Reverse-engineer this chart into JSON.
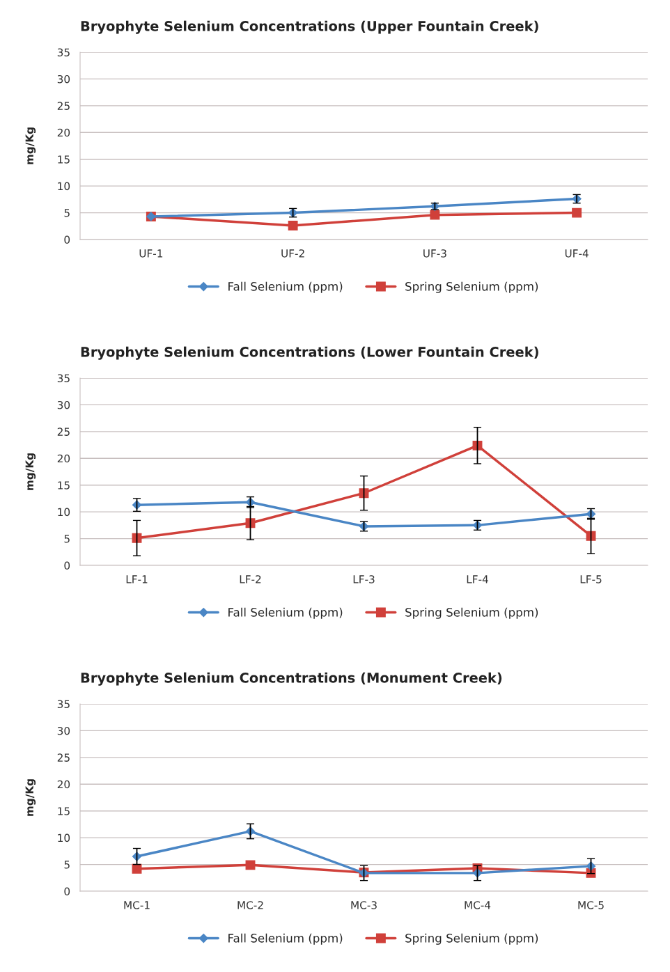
{
  "chart_data": [
    {
      "type": "line",
      "title": "Bryophyte Selenium Concentrations (Upper Fountain Creek)",
      "ylabel": "mg/Kg",
      "categories": [
        "UF-1",
        "UF-2",
        "UF-3",
        "UF-4"
      ],
      "series": [
        {
          "name": "Fall Selenium (ppm)",
          "color": "#4a86c5",
          "marker": "diamond",
          "values": [
            4.3,
            5.0,
            6.2,
            7.6
          ],
          "errors": [
            null,
            0.8,
            0.6,
            0.8
          ]
        },
        {
          "name": "Spring Selenium (ppm)",
          "color": "#d0403a",
          "marker": "square",
          "values": [
            4.3,
            2.6,
            4.6,
            5.0
          ]
        }
      ],
      "ylim": [
        0,
        35
      ],
      "yticks": [
        0,
        5,
        10,
        15,
        20,
        25,
        30,
        35
      ],
      "grid": "y",
      "legend": "bottom"
    },
    {
      "type": "line",
      "title": "Bryophyte Selenium Concentrations (Lower Fountain Creek)",
      "ylabel": "mg/Kg",
      "categories": [
        "LF-1",
        "LF-2",
        "LF-3",
        "LF-4",
        "LF-5"
      ],
      "series": [
        {
          "name": "Fall Selenium (ppm)",
          "color": "#4a86c5",
          "marker": "diamond",
          "values": [
            11.3,
            11.8,
            7.3,
            7.5,
            9.6
          ],
          "errors": [
            1.2,
            1.0,
            0.9,
            0.9,
            1.0
          ]
        },
        {
          "name": "Spring Selenium (ppm)",
          "color": "#d0403a",
          "marker": "square",
          "values": [
            5.1,
            7.9,
            13.5,
            22.4,
            5.5
          ],
          "errors": [
            3.3,
            3.1,
            3.2,
            3.4,
            3.3
          ]
        }
      ],
      "ylim": [
        0,
        35
      ],
      "yticks": [
        0,
        5,
        10,
        15,
        20,
        25,
        30,
        35
      ],
      "grid": "y",
      "legend": "bottom"
    },
    {
      "type": "line",
      "title": "Bryophyte Selenium Concentrations (Monument Creek)",
      "ylabel": "mg/Kg",
      "categories": [
        "MC-1",
        "MC-2",
        "MC-3",
        "MC-4",
        "MC-5"
      ],
      "series": [
        {
          "name": "Fall Selenium (ppm)",
          "color": "#4a86c5",
          "marker": "diamond",
          "values": [
            6.5,
            11.2,
            3.4,
            3.4,
            4.7
          ],
          "errors": [
            1.5,
            1.4,
            1.4,
            1.4,
            1.4
          ]
        },
        {
          "name": "Spring Selenium (ppm)",
          "color": "#d0403a",
          "marker": "square",
          "values": [
            4.2,
            4.9,
            3.5,
            4.3,
            3.4
          ]
        }
      ],
      "ylim": [
        0,
        35
      ],
      "yticks": [
        0,
        5,
        10,
        15,
        20,
        25,
        30,
        35
      ],
      "grid": "y",
      "legend": "bottom"
    }
  ]
}
